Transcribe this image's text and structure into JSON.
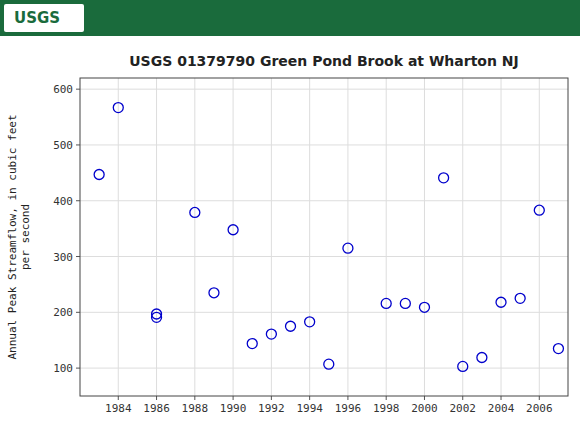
{
  "chart_data": {
    "type": "scatter",
    "title": "USGS 01379790 Green Pond Brook at Wharton NJ",
    "annotations": [
      {
        "text": "USGS"
      }
    ],
    "y_label": "Annual Peak Streamflow, in cubic feet\nper second",
    "x": [
      1983,
      1984,
      1986,
      1986,
      1988,
      1989,
      1990,
      1991,
      1992,
      1993,
      1994,
      1995,
      1996,
      1998,
      1999,
      2000,
      2001,
      2002,
      2003,
      2004,
      2005,
      2006,
      2007
    ],
    "values": [
      447,
      567,
      191,
      197,
      379,
      235,
      348,
      144,
      161,
      175,
      183,
      107,
      315,
      216,
      216,
      209,
      441,
      103,
      119,
      218,
      225,
      383,
      135
    ],
    "color": "#0000CC",
    "marker": "open-circle",
    "xlim": [
      1982,
      2007.5
    ],
    "ylim": [
      50,
      620
    ],
    "xticks": [
      1984,
      1986,
      1988,
      1990,
      1992,
      1994,
      1996,
      1998,
      2000,
      2002,
      2004,
      2006
    ],
    "yticks": [
      100,
      200,
      300,
      400,
      500,
      600
    ],
    "grid": true
  }
}
